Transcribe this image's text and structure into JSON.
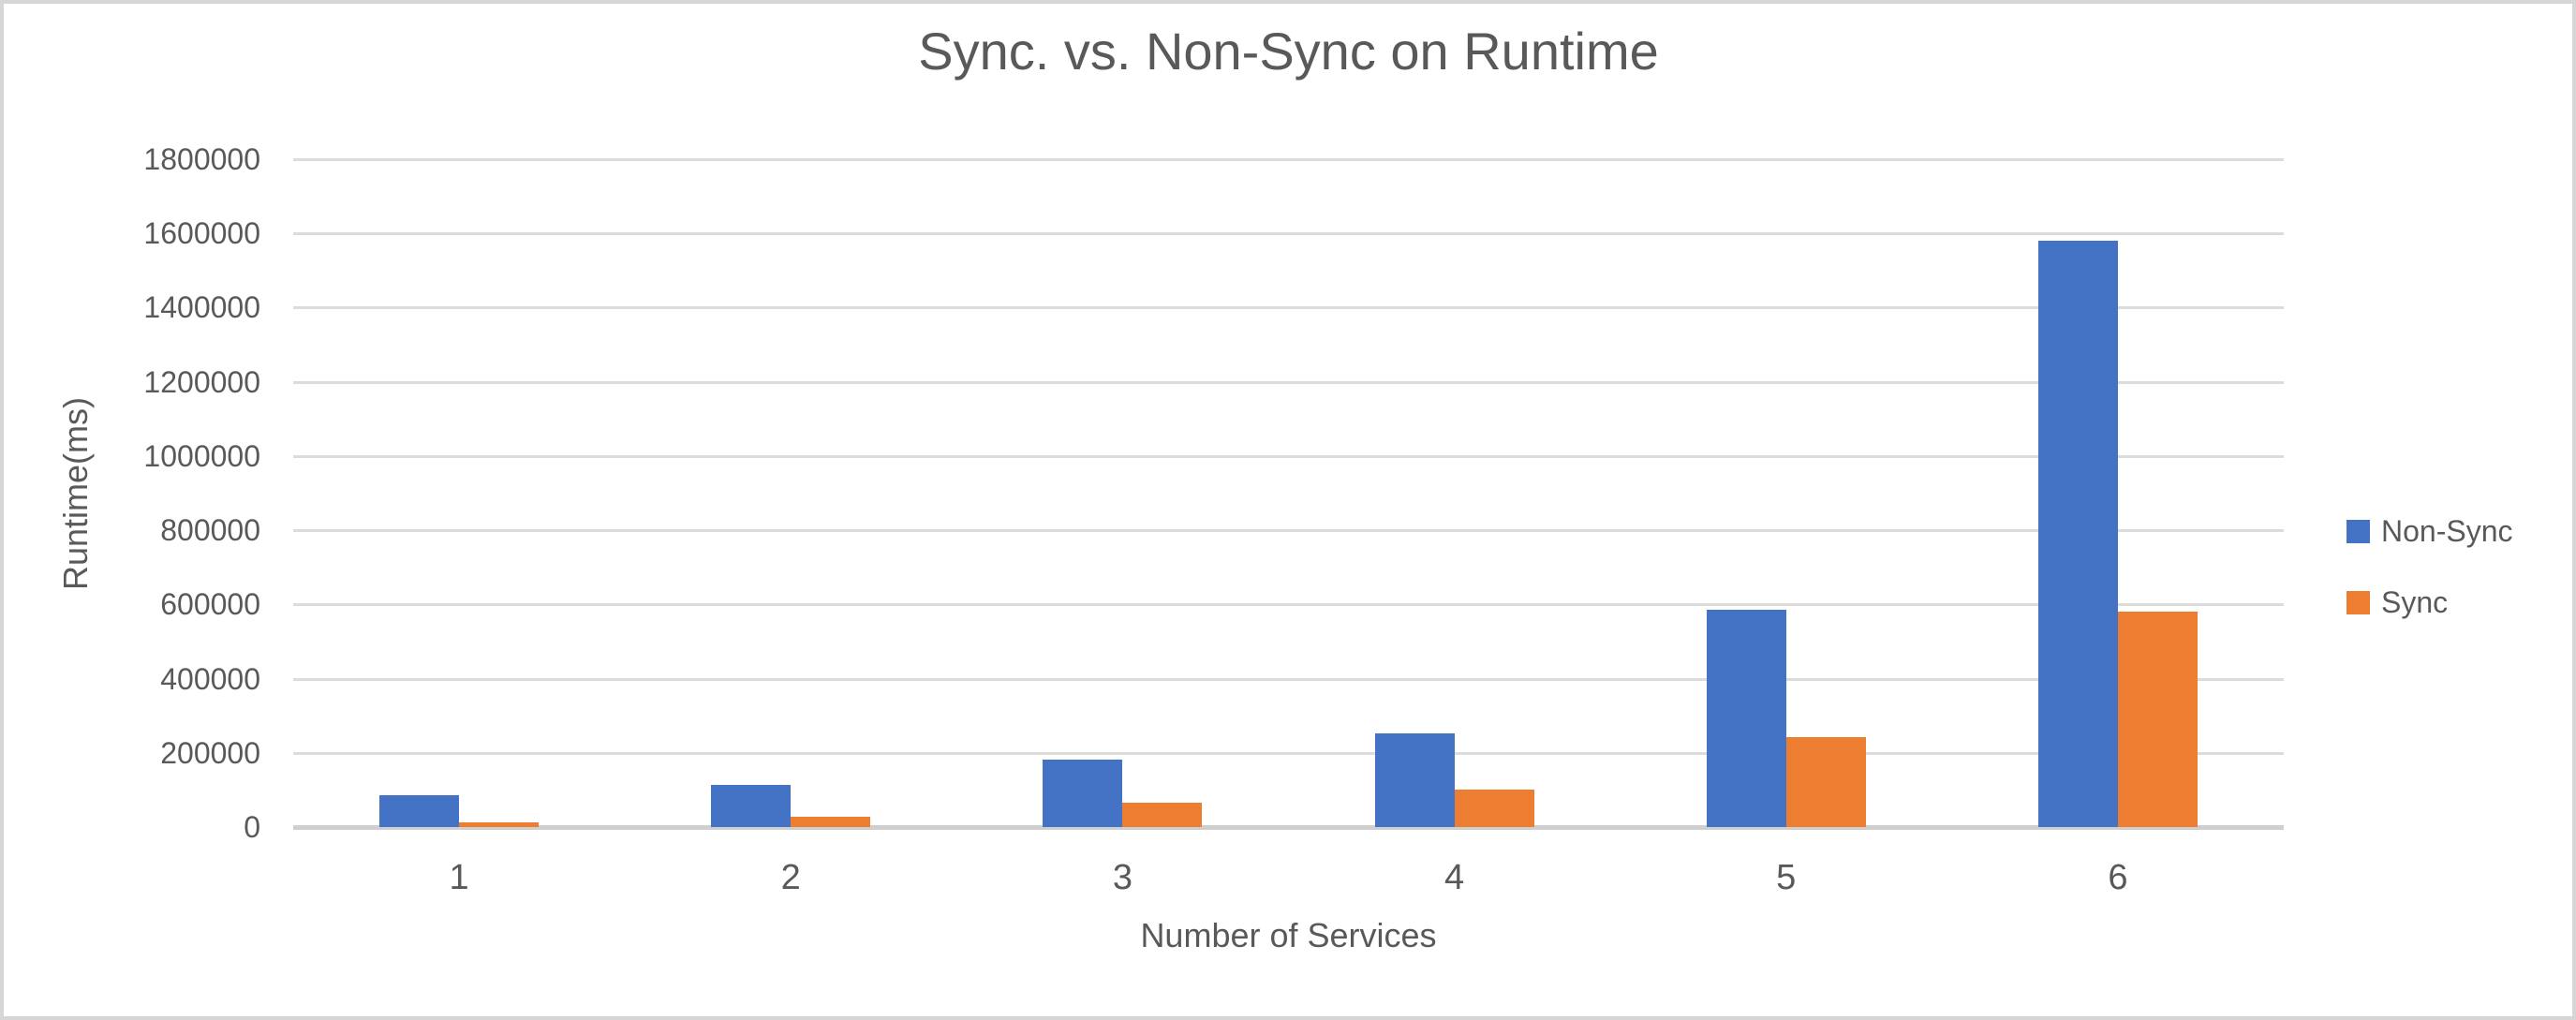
{
  "chart_data": {
    "type": "bar",
    "title": "Sync. vs. Non-Sync on Runtime",
    "xlabel": "Number of Services",
    "ylabel": "Runtime(ms)",
    "categories": [
      "1",
      "2",
      "3",
      "4",
      "5",
      "6"
    ],
    "series": [
      {
        "name": "Non-Sync",
        "color": "#4472C4",
        "values": [
          86000,
          113000,
          182000,
          252000,
          586000,
          1581000
        ]
      },
      {
        "name": "Sync",
        "color": "#ED7D31",
        "values": [
          13000,
          28000,
          66000,
          102000,
          243000,
          581000
        ]
      }
    ],
    "ylim": [
      0,
      1800000
    ],
    "ytick_step": 200000,
    "ytick_labels": [
      "0",
      "200000",
      "400000",
      "600000",
      "800000",
      "1000000",
      "1200000",
      "1400000",
      "1600000",
      "1800000"
    ],
    "grid": true,
    "legend_position": "right",
    "text_color": "#595959"
  }
}
